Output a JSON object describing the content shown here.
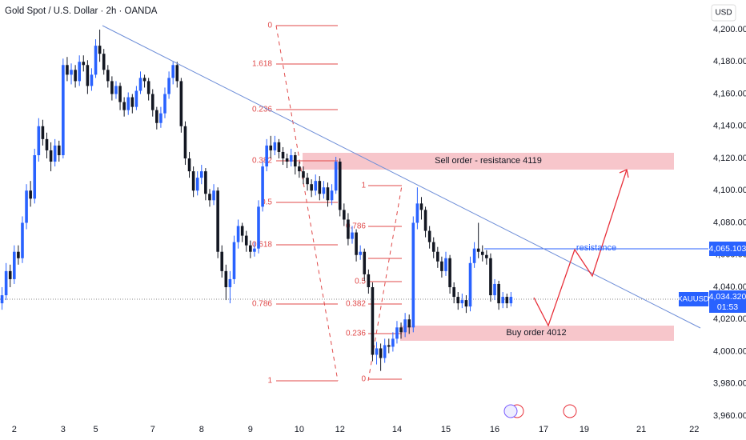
{
  "header": {
    "title": "Gold Spot / U.S. Dollar · 2h · OANDA",
    "currency": "USD"
  },
  "chart_data": {
    "type": "candlestick",
    "candles": [
      [
        4030,
        4040,
        4026,
        4035
      ],
      [
        4035,
        4055,
        4032,
        4050
      ],
      [
        4050,
        4054,
        4040,
        4045
      ],
      [
        4045,
        4066,
        4042,
        4062
      ],
      [
        4062,
        4066,
        4054,
        4058
      ],
      [
        4058,
        4084,
        4055,
        4080
      ],
      [
        4080,
        4104,
        4076,
        4100
      ],
      [
        4100,
        4106,
        4090,
        4095
      ],
      [
        4095,
        4126,
        4092,
        4122
      ],
      [
        4122,
        4145,
        4118,
        4140
      ],
      [
        4140,
        4144,
        4128,
        4132
      ],
      [
        4132,
        4136,
        4120,
        4125
      ],
      [
        4125,
        4130,
        4112,
        4118
      ],
      [
        4118,
        4132,
        4115,
        4128
      ],
      [
        4128,
        4131,
        4118,
        4122
      ],
      [
        4122,
        4182,
        4120,
        4178
      ],
      [
        4178,
        4183,
        4168,
        4172
      ],
      [
        4172,
        4179,
        4166,
        4175
      ],
      [
        4175,
        4178,
        4164,
        4168
      ],
      [
        4168,
        4184,
        4165,
        4180
      ],
      [
        4180,
        4184,
        4174,
        4178
      ],
      [
        4178,
        4181,
        4160,
        4165
      ],
      [
        4165,
        4176,
        4162,
        4172
      ],
      [
        4172,
        4194,
        4170,
        4190
      ],
      [
        4190,
        4200,
        4180,
        4185
      ],
      [
        4185,
        4188,
        4172,
        4175
      ],
      [
        4175,
        4178,
        4164,
        4168
      ],
      [
        4168,
        4171,
        4156,
        4160
      ],
      [
        4160,
        4168,
        4157,
        4165
      ],
      [
        4165,
        4167,
        4150,
        4155
      ],
      [
        4155,
        4158,
        4146,
        4150
      ],
      [
        4150,
        4161,
        4147,
        4158
      ],
      [
        4158,
        4160,
        4148,
        4152
      ],
      [
        4152,
        4165,
        4150,
        4162
      ],
      [
        4162,
        4174,
        4160,
        4170
      ],
      [
        4170,
        4172,
        4164,
        4168
      ],
      [
        4168,
        4170,
        4156,
        4160
      ],
      [
        4160,
        4163,
        4146,
        4150
      ],
      [
        4150,
        4152,
        4138,
        4142
      ],
      [
        4142,
        4152,
        4139,
        4148
      ],
      [
        4148,
        4164,
        4145,
        4160
      ],
      [
        4160,
        4174,
        4157,
        4170
      ],
      [
        4170,
        4180,
        4166,
        4178
      ],
      [
        4178,
        4180,
        4164,
        4168
      ],
      [
        4168,
        4170,
        4136,
        4140
      ],
      [
        4140,
        4143,
        4116,
        4120
      ],
      [
        4120,
        4124,
        4108,
        4112
      ],
      [
        4112,
        4115,
        4096,
        4100
      ],
      [
        4100,
        4112,
        4097,
        4108
      ],
      [
        4108,
        4116,
        4104,
        4112
      ],
      [
        4112,
        4114,
        4094,
        4098
      ],
      [
        4098,
        4101,
        4090,
        4094
      ],
      [
        4094,
        4104,
        4091,
        4100
      ],
      [
        4100,
        4102,
        4058,
        4062
      ],
      [
        4062,
        4066,
        4046,
        4050
      ],
      [
        4050,
        4054,
        4032,
        4040
      ],
      [
        4040,
        4050,
        4030,
        4045
      ],
      [
        4045,
        4072,
        4042,
        4068
      ],
      [
        4068,
        4082,
        4064,
        4078
      ],
      [
        4078,
        4080,
        4068,
        4072
      ],
      [
        4072,
        4075,
        4062,
        4066
      ],
      [
        4066,
        4069,
        4058,
        4062
      ],
      [
        4062,
        4068,
        4059,
        4064
      ],
      [
        4064,
        4094,
        4061,
        4090
      ],
      [
        4090,
        4118,
        4087,
        4115
      ],
      [
        4115,
        4132,
        4112,
        4128
      ],
      [
        4128,
        4134,
        4120,
        4125
      ],
      [
        4125,
        4134,
        4122,
        4130
      ],
      [
        4130,
        4132,
        4120,
        4124
      ],
      [
        4124,
        4127,
        4116,
        4120
      ],
      [
        4120,
        4123,
        4114,
        4118
      ],
      [
        4118,
        4126,
        4115,
        4122
      ],
      [
        4122,
        4124,
        4110,
        4115
      ],
      [
        4115,
        4118,
        4108,
        4112
      ],
      [
        4112,
        4115,
        4104,
        4108
      ],
      [
        4108,
        4111,
        4100,
        4104
      ],
      [
        4104,
        4107,
        4096,
        4100
      ],
      [
        4100,
        4110,
        4097,
        4106
      ],
      [
        4106,
        4109,
        4094,
        4098
      ],
      [
        4098,
        4106,
        4095,
        4102
      ],
      [
        4102,
        4105,
        4090,
        4094
      ],
      [
        4094,
        4104,
        4091,
        4100
      ],
      [
        4100,
        4121,
        4098,
        4118
      ],
      [
        4118,
        4120,
        4084,
        4088
      ],
      [
        4088,
        4092,
        4078,
        4082
      ],
      [
        4082,
        4086,
        4066,
        4070
      ],
      [
        4070,
        4078,
        4067,
        4074
      ],
      [
        4074,
        4076,
        4056,
        4060
      ],
      [
        4060,
        4066,
        4057,
        4062
      ],
      [
        4062,
        4064,
        4044,
        4048
      ],
      [
        4048,
        4051,
        4036,
        4040
      ],
      [
        4040,
        4043,
        3994,
        3998
      ],
      [
        3998,
        4006,
        3992,
        4002
      ],
      [
        4002,
        4005,
        3988,
        3996
      ],
      [
        3996,
        4008,
        3993,
        4004
      ],
      [
        4004,
        4008,
        3999,
        4003
      ],
      [
        4003,
        4012,
        4000,
        4008
      ],
      [
        4008,
        4019,
        4005,
        4015
      ],
      [
        4015,
        4018,
        4008,
        4012
      ],
      [
        4012,
        4024,
        4009,
        4020
      ],
      [
        4020,
        4023,
        4011,
        4015
      ],
      [
        4015,
        4084,
        4012,
        4080
      ],
      [
        4080,
        4102,
        4076,
        4092
      ],
      [
        4092,
        4096,
        4082,
        4088
      ],
      [
        4088,
        4090,
        4071,
        4075
      ],
      [
        4075,
        4078,
        4064,
        4068
      ],
      [
        4068,
        4071,
        4058,
        4062
      ],
      [
        4062,
        4065,
        4052,
        4056
      ],
      [
        4056,
        4059,
        4046,
        4050
      ],
      [
        4050,
        4062,
        4047,
        4058
      ],
      [
        4058,
        4060,
        4036,
        4040
      ],
      [
        4040,
        4043,
        4030,
        4034
      ],
      [
        4034,
        4037,
        4026,
        4030
      ],
      [
        4030,
        4036,
        4027,
        4032
      ],
      [
        4032,
        4035,
        4024,
        4028
      ],
      [
        4028,
        4059,
        4025,
        4055
      ],
      [
        4055,
        4068,
        4052,
        4064
      ],
      [
        4064,
        4080,
        4058,
        4062
      ],
      [
        4062,
        4066,
        4056,
        4060
      ],
      [
        4060,
        4063,
        4054,
        4058
      ],
      [
        4058,
        4061,
        4031,
        4035
      ],
      [
        4035,
        4045,
        4032,
        4042
      ],
      [
        4042,
        4044,
        4026,
        4030
      ],
      [
        4030,
        4037,
        4027,
        4034
      ],
      [
        4034,
        4036,
        4027,
        4030
      ],
      [
        4030,
        4037,
        4028,
        4034
      ]
    ],
    "xlim": [
      -0.5,
      172.5
    ],
    "xticks": [
      {
        "value": 3,
        "label": "2"
      },
      {
        "value": 15,
        "label": "3"
      },
      {
        "value": 23,
        "label": "5"
      },
      {
        "value": 37,
        "label": "7"
      },
      {
        "value": 49,
        "label": "8"
      },
      {
        "value": 61,
        "label": "9"
      },
      {
        "value": 73,
        "label": "10"
      },
      {
        "value": 83,
        "label": "12"
      },
      {
        "value": 97,
        "label": "14"
      },
      {
        "value": 109,
        "label": "15"
      },
      {
        "value": 121,
        "label": "16"
      },
      {
        "value": 133,
        "label": "17"
      },
      {
        "value": 143,
        "label": "19"
      },
      {
        "value": 157,
        "label": "21"
      },
      {
        "value": 170,
        "label": "22"
      }
    ],
    "ylim": [
      3957.5,
      4218.4
    ],
    "yticks": [
      {
        "value": 3960,
        "label": "3,960.000"
      },
      {
        "value": 3980,
        "label": "3,980.000"
      },
      {
        "value": 4000,
        "label": "4,000.000"
      },
      {
        "value": 4020,
        "label": "4,020.000"
      },
      {
        "value": 4040,
        "label": "4,040.000"
      },
      {
        "value": 4060,
        "label": "4,060.000"
      },
      {
        "value": 4080,
        "label": "4,080.000"
      },
      {
        "value": 4100,
        "label": "4,100.000"
      },
      {
        "value": 4120,
        "label": "4,120.000"
      },
      {
        "value": 4140,
        "label": "4,140.000"
      },
      {
        "value": 4160,
        "label": "4,160.000"
      },
      {
        "value": 4180,
        "label": "4,180.000"
      },
      {
        "value": 4200,
        "label": "4,200.000"
      }
    ],
    "colors": {
      "up": "#2962ff",
      "down": "#131722"
    }
  },
  "annotations": {
    "sell_zone": "Sell order - resistance 4119",
    "buy_zone": "Buy order 4012",
    "resistance": "resistance",
    "fib_left": [
      "0",
      "1.618",
      "0.236",
      "0.382",
      "0.5",
      "0.618",
      "0.786",
      "1"
    ],
    "fib_right": [
      "1",
      "0.786",
      "0.5",
      "0.382",
      "0.236",
      "0"
    ]
  },
  "price_tags": {
    "resistance": "4,065.103",
    "symbol": "XAUUSD",
    "last": "4,034.320",
    "countdown": "01:53"
  }
}
